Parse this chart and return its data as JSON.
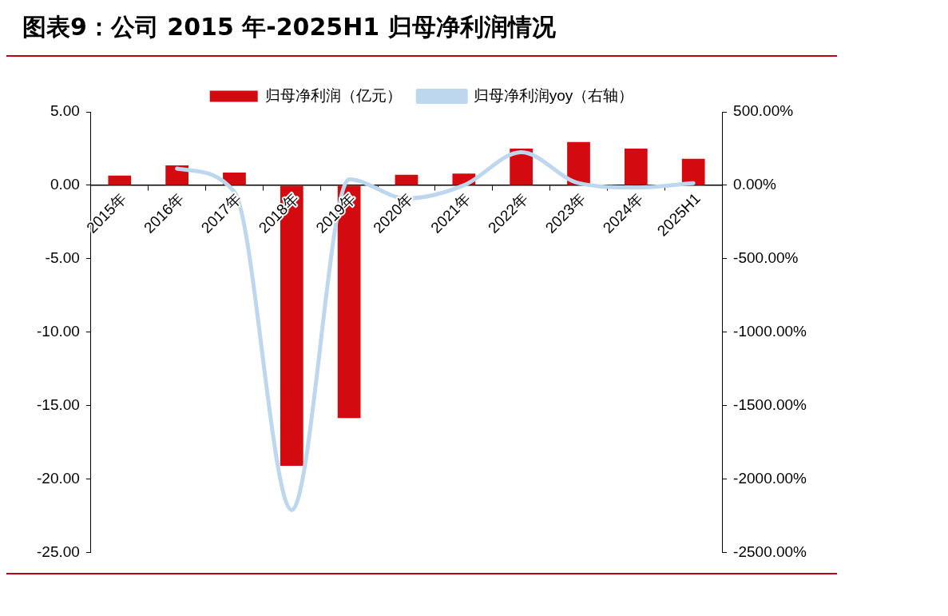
{
  "chart_data": {
    "type": "bar",
    "title": "图表9：公司 2015 年-2025H1 归母净利润情况",
    "categories": [
      "2015年",
      "2016年",
      "2017年",
      "2018年",
      "2019年",
      "2020年",
      "2021年",
      "2022年",
      "2023年",
      "2024年",
      "2025H1"
    ],
    "series": [
      {
        "name": "归母净利润（亿元）",
        "color": "#d30b10",
        "values": [
          0.66,
          1.35,
          0.87,
          -19.1,
          -15.85,
          0.72,
          0.8,
          2.5,
          2.95,
          2.5,
          1.8
        ]
      },
      {
        "name": "归母净利润yoy（右轴）",
        "type": "line",
        "axis": "y2",
        "color": "#bdd7ee",
        "values": [
          null,
          114,
          -45,
          -2210,
          40,
          -90,
          0,
          225,
          15,
          -15,
          15
        ]
      }
    ],
    "ylim": [
      -25,
      5
    ],
    "yticks": [
      {
        "value": -25,
        "label": "-25.00"
      },
      {
        "value": -20,
        "label": "-20.00"
      },
      {
        "value": -15,
        "label": "-15.00"
      },
      {
        "value": -10,
        "label": "-10.00"
      },
      {
        "value": -5,
        "label": "-5.00"
      },
      {
        "value": 0,
        "label": "0.00"
      },
      {
        "value": 5,
        "label": "5.00"
      }
    ],
    "y2lim": [
      -2500,
      500
    ],
    "y2ticks": [
      {
        "value": -2500,
        "label": "-2500.00%"
      },
      {
        "value": -2000,
        "label": "-2000.00%"
      },
      {
        "value": -1500,
        "label": "-1500.00%"
      },
      {
        "value": -1000,
        "label": "-1000.00%"
      },
      {
        "value": -500,
        "label": "-500.00%"
      },
      {
        "value": 0,
        "label": "0.00%"
      },
      {
        "value": 500,
        "label": "500.00%"
      }
    ],
    "grid": false,
    "legend": "top",
    "marker": "none",
    "line_style": "solid"
  }
}
